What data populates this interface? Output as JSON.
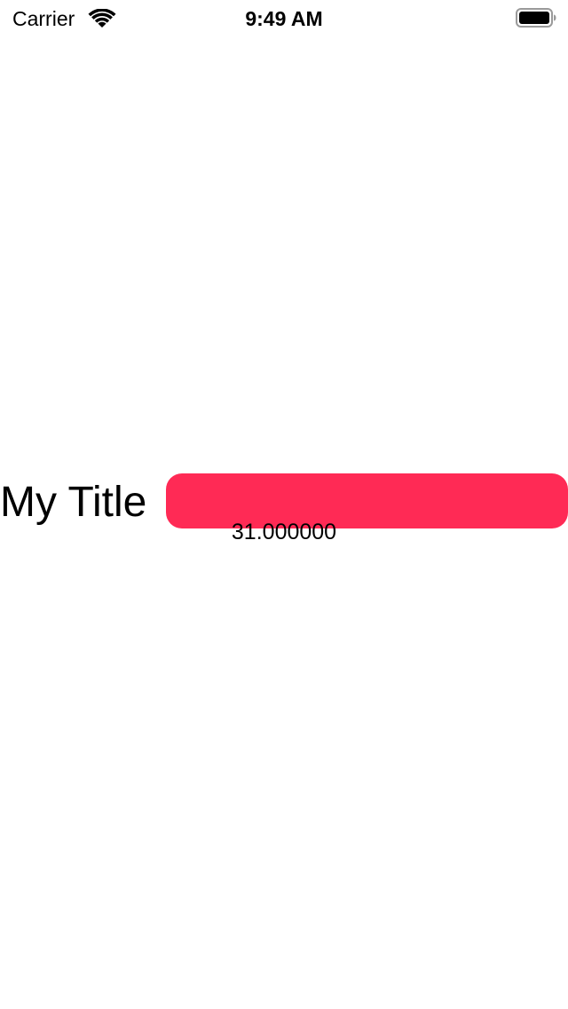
{
  "status_bar": {
    "carrier": "Carrier",
    "time": "9:49 AM",
    "wifi_icon": "wifi-icon",
    "battery_icon": "battery-icon"
  },
  "content": {
    "title": "My Title",
    "value": "31.000000",
    "bar_color": "#ff2a55"
  },
  "colors": {
    "background": "#ffffff",
    "text": "#000000",
    "accent": "#ff2a55"
  }
}
